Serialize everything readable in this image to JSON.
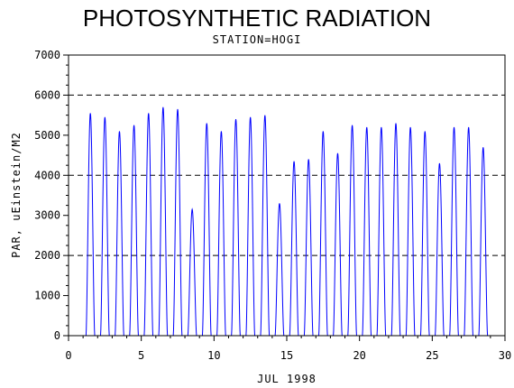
{
  "chart_data": {
    "type": "line",
    "title": "PHOTOSYNTHETIC RADIATION",
    "subtitle": "STATION=HOGI",
    "xlabel": "JUL 1998",
    "ylabel": "PAR, uEinstein/M2",
    "xlim": [
      0,
      30
    ],
    "ylim": [
      0,
      7000
    ],
    "x_ticks": [
      0,
      5,
      10,
      15,
      20,
      25,
      30
    ],
    "y_ticks": [
      0,
      1000,
      2000,
      3000,
      4000,
      5000,
      6000,
      7000
    ],
    "reference_lines": [
      2000,
      4000,
      6000
    ],
    "grid": false,
    "series_color": "#0000ff",
    "series": [
      {
        "x": [
          1.5,
          2.5,
          3.5,
          4.5,
          5.5,
          6.5,
          7.5,
          8.5,
          9.5,
          10.5,
          11.5,
          12.5,
          13.5,
          14.5,
          15.5,
          16.5,
          17.5,
          18.5,
          19.5,
          20.5,
          21.5,
          22.5,
          23.5,
          24.5,
          25.5,
          26.5,
          27.5,
          28.5,
          29.5
        ],
        "values": [
          5550,
          5450,
          5100,
          5250,
          5550,
          5700,
          5650,
          3150,
          5300,
          5100,
          5400,
          5450,
          5500,
          3300,
          4350,
          4400,
          5100,
          4550,
          5250,
          5200,
          5200,
          5300,
          5200,
          5100,
          4300,
          5200,
          5200,
          4700,
          0
        ]
      }
    ]
  }
}
